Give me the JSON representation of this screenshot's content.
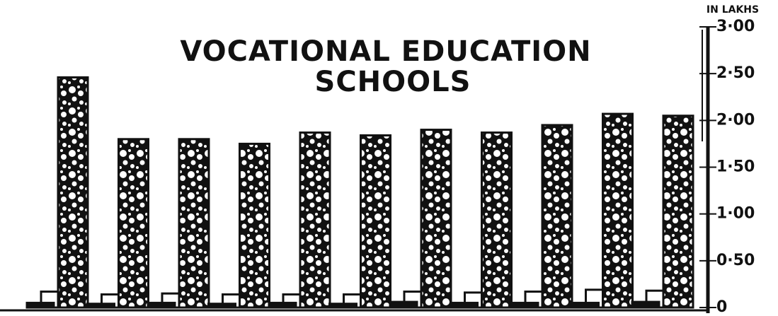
{
  "chart_data": {
    "type": "bar",
    "title": [
      "VOCATIONAL EDUCATION",
      "SCHOOLS"
    ],
    "y_axis_label": "IN LAKHS",
    "categories": [
      null,
      null,
      null,
      null,
      null,
      null,
      null,
      null,
      null,
      null,
      null
    ],
    "series": [
      {
        "color": "#111111",
        "values": [
          0.05,
          0.04,
          0.05,
          0.04,
          0.05,
          0.04,
          0.06,
          0.05,
          0.05,
          0.05,
          0.06
        ]
      },
      {
        "color": "#ffffff",
        "values": [
          0.17,
          0.14,
          0.15,
          0.14,
          0.14,
          0.14,
          0.17,
          0.16,
          0.17,
          0.19,
          0.18
        ]
      },
      {
        "color": "#111111",
        "pattern": "circles",
        "values": [
          2.46,
          1.8,
          1.8,
          1.75,
          1.87,
          1.84,
          1.9,
          1.87,
          1.95,
          2.07,
          2.05
        ]
      }
    ],
    "ylim": [
      0,
      3
    ],
    "yticks": [
      0,
      {
        "value": 0.5,
        "label": "0·50"
      },
      {
        "value": 1,
        "label": "1·00"
      },
      {
        "value": 1.5,
        "label": "1·50"
      },
      {
        "value": 2,
        "label": "2·00"
      },
      {
        "value": 2.5,
        "label": "2·50"
      },
      {
        "value": 3,
        "label": "3·00"
      }
    ]
  }
}
